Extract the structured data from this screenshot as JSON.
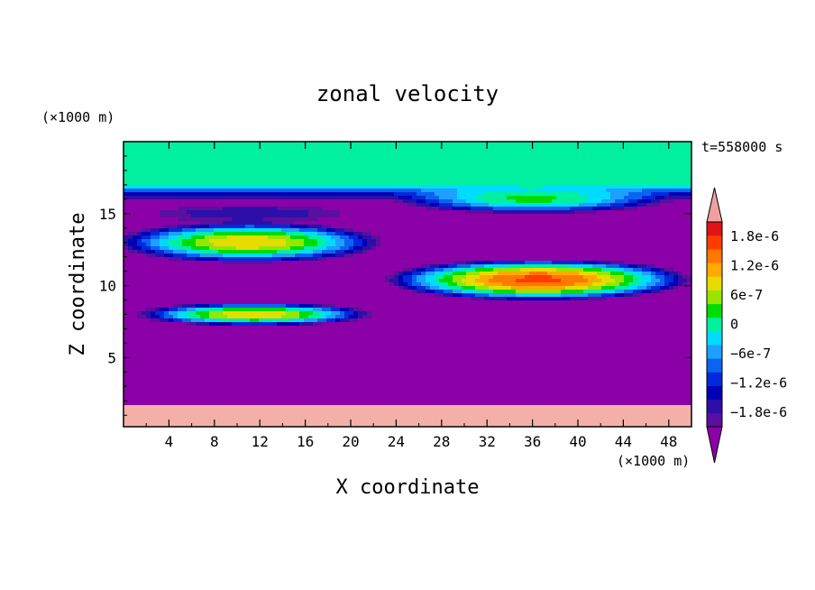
{
  "chart_data": {
    "type": "heatmap",
    "title": "zonal velocity",
    "xlabel": "X coordinate",
    "ylabel": "Z coordinate",
    "x_unit": "(×1000 m)",
    "y_unit": "(×1000 m)",
    "time_label": "t=558000 s",
    "xlim": [
      0,
      50
    ],
    "ylim": [
      0.2,
      20
    ],
    "x_ticks": [
      4,
      8,
      12,
      16,
      20,
      24,
      28,
      32,
      36,
      40,
      44,
      48
    ],
    "y_ticks": [
      5,
      10,
      15
    ],
    "x_tick_labels": [
      "4",
      "8",
      "12",
      "16",
      "20",
      "24",
      "28",
      "32",
      "36",
      "40",
      "44",
      "48"
    ],
    "y_tick_labels": [
      "5",
      "10",
      "15"
    ],
    "colorbar": {
      "levels": [
        -2.1e-06,
        -1.8e-06,
        -1.5e-06,
        -1.2e-06,
        -9e-07,
        -6e-07,
        -3e-07,
        0,
        3e-07,
        6e-07,
        9e-07,
        1.2e-06,
        1.5e-06,
        1.8e-06,
        2.1e-06
      ],
      "colors": [
        "#5a0fa0",
        "#2d0fa8",
        "#0000b4",
        "#0028dc",
        "#0a64f0",
        "#1ea0ff",
        "#00dcff",
        "#00f0a0",
        "#00dc00",
        "#96e600",
        "#e6dc00",
        "#ffaa00",
        "#ff7800",
        "#ff3c00",
        "#e01414"
      ],
      "under_color": "#8c00a8",
      "over_color": "#f0a0a0",
      "tick_labels": [
        "1.8e-6",
        "1.2e-6",
        "6e-7",
        "0",
        "−6e-7",
        "−1.2e-6",
        "−1.8e-6"
      ],
      "tick_values": [
        1.8e-06,
        1.2e-06,
        6e-07,
        0,
        -6e-07,
        -1.2e-06,
        -1.8e-06
      ]
    },
    "masked_color": "#f4b0a8",
    "background_value": -2.4e-06,
    "masked_below_z": 1.8,
    "features": [
      {
        "x0": 0,
        "x1": 50,
        "z0": 15.8,
        "z1": 20,
        "value": 1e-07,
        "rise_from": 0
      },
      {
        "xc": 11,
        "zc": 15.0,
        "rx": 11,
        "rz": 0.8,
        "value": -1.5e-06,
        "profile": 1.4
      },
      {
        "xc": 11,
        "zc": 13.0,
        "rx": 12.5,
        "rz": 1.5,
        "value": 1.2e-06,
        "profile": 1.1
      },
      {
        "xc": 11.5,
        "zc": 8.0,
        "rx": 11,
        "rz": 0.85,
        "value": 1.2e-06,
        "profile": 1.1
      },
      {
        "xc": 36,
        "zc": 16.0,
        "rx": 13,
        "rz": 1.1,
        "value": 4e-07,
        "profile": 1.2
      },
      {
        "xc": 36.5,
        "zc": 10.4,
        "rx": 14,
        "rz": 1.5,
        "value": 1.9e-06,
        "profile": 1.0
      }
    ]
  }
}
